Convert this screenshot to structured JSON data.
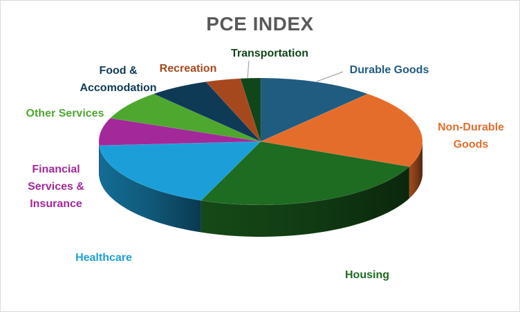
{
  "chart_data": {
    "type": "pie",
    "title": "PCE INDEX",
    "slices": [
      {
        "label": "Durable Goods",
        "value": 11.5,
        "color": "#1f5c80"
      },
      {
        "label": "Non-Durable Goods",
        "value": 20.0,
        "color": "#e56d2c"
      },
      {
        "label": "Housing",
        "value": 24.5,
        "color": "#1e6b22"
      },
      {
        "label": "Healthcare",
        "value": 18.0,
        "color": "#1c9fd9"
      },
      {
        "label": "Financial Services & Insurance",
        "value": 7.0,
        "color": "#a3289a"
      },
      {
        "label": "Other Services",
        "value": 7.5,
        "color": "#4ea72e"
      },
      {
        "label": "Food & Accomodation",
        "value": 6.0,
        "color": "#0e3a56"
      },
      {
        "label": "Recreation",
        "value": 3.5,
        "color": "#a6481e"
      },
      {
        "label": "Transportation",
        "value": 2.0,
        "color": "#11451a"
      }
    ],
    "label_colors": {
      "Durable Goods": "#1f5c80",
      "Non-Durable Goods": "#e56d2c",
      "Housing": "#1e6b22",
      "Healthcare": "#1c9fd9",
      "Financial Services & Insurance": "#a3289a",
      "Other Services": "#4ea72e",
      "Food & Accomodation": "#0e3a56",
      "Recreation": "#a6481e",
      "Transportation": "#11451a"
    },
    "label_lines": [
      [
        "Durable Goods"
      ],
      [
        "Non-Durable",
        "Goods"
      ],
      [
        "Housing"
      ],
      [
        "Healthcare"
      ],
      [
        "Financial",
        "Services &",
        "Insurance"
      ],
      [
        "Other Services"
      ],
      [
        "Food &",
        "Accomodation"
      ],
      [
        "Recreation"
      ],
      [
        "Transportation"
      ]
    ],
    "legend": "none"
  }
}
